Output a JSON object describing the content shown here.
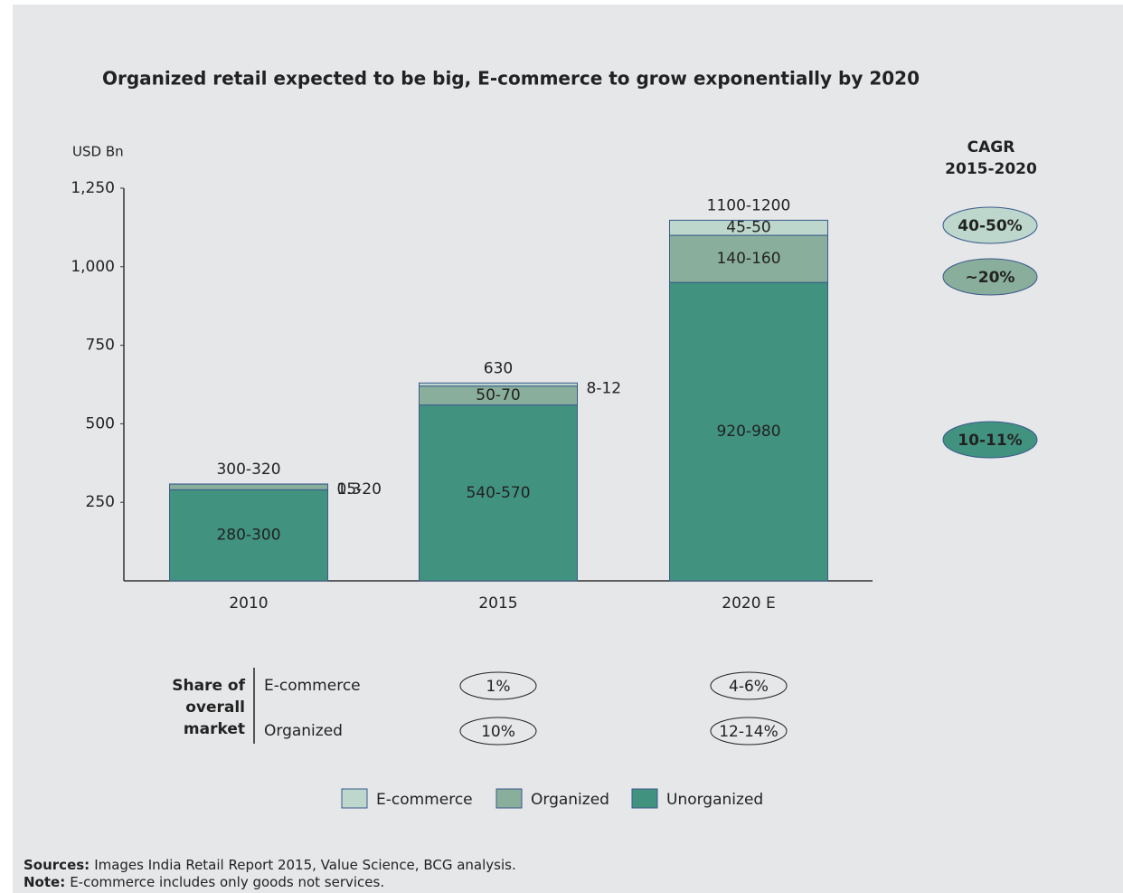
{
  "chart_data": {
    "type": "stacked-bar",
    "title": "Organized retail expected to be big, E-commerce to grow exponentially by 2020",
    "y_axis_label": "USD Bn",
    "categories": [
      "2010",
      "2015",
      "2020 E"
    ],
    "series": [
      {
        "name": "E-commerce",
        "color": "#bdd7cc",
        "values": [
          0.3,
          10,
          48
        ],
        "value_labels": [
          "0.3",
          "8-12",
          "45-50"
        ]
      },
      {
        "name": "Organized",
        "color": "#8aae9c",
        "values": [
          18,
          60,
          150
        ],
        "value_labels": [
          "15-20",
          "50-70",
          "140-160"
        ]
      },
      {
        "name": "Unorganized",
        "color": "#41927f",
        "values": [
          290,
          560,
          950
        ],
        "value_labels": [
          "280-300",
          "540-570",
          "920-980"
        ]
      }
    ],
    "total_labels": [
      "300-320",
      "630",
      "1100-1200"
    ],
    "ylim": [
      0,
      1250
    ],
    "yticks": [
      250,
      500,
      750,
      {
        "value": 1000,
        "label": "1,000"
      },
      {
        "value": 1250,
        "label": "1,250"
      }
    ],
    "cagr": {
      "title": [
        "CAGR",
        "2015-2020"
      ],
      "values": [
        "40-50%",
        "~20%",
        "10-11%"
      ]
    },
    "share": {
      "title": [
        "Share of",
        "overall",
        "market"
      ],
      "rows": [
        {
          "label": "E-commerce",
          "values": [
            "1%",
            "4-6%"
          ]
        },
        {
          "label": "Organized",
          "values": [
            "10%",
            "12-14%"
          ]
        }
      ]
    },
    "sources": {
      "label": "Sources:",
      "text": "Images India Retail Report 2015, Value Science, BCG analysis."
    },
    "note": {
      "label": "Note:",
      "text": "E-commerce includes only goods not services."
    }
  }
}
